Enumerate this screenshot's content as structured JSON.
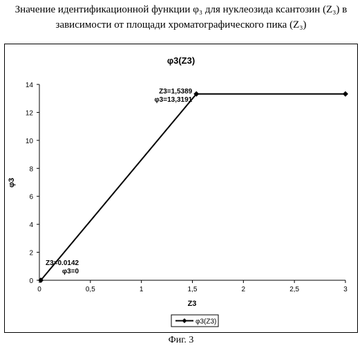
{
  "caption": {
    "line1": "Значение идентификационной функции φ₃ для нуклеозида ксантозин (Z₃) в",
    "line2": "зависимости от площади хроматографического пика (Z₃)"
  },
  "figure_label": "Фиг. 3",
  "chart_data": {
    "type": "line",
    "title": "φ3(Z3)",
    "xlabel": "Z3",
    "ylabel": "φ3",
    "xlim": [
      0,
      3
    ],
    "ylim": [
      0,
      14
    ],
    "x_ticks": [
      "0",
      "0,5",
      "1",
      "1,5",
      "2",
      "2,5",
      "3"
    ],
    "y_ticks": [
      "0",
      "2",
      "4",
      "6",
      "8",
      "10",
      "12",
      "14"
    ],
    "grid": false,
    "legend_position": "bottom",
    "series": [
      {
        "name": "φ3(Z3)",
        "marker": "diamond",
        "color": "#000000",
        "x": [
          0.0142,
          1.5389,
          3
        ],
        "y": [
          0,
          13.3191,
          13.3191
        ]
      }
    ],
    "annotations": [
      {
        "lines": [
          "Z3=0.0142",
          "φ3=0"
        ]
      },
      {
        "lines": [
          "Z3=1,5389",
          "φ3=13,3191"
        ]
      }
    ]
  }
}
